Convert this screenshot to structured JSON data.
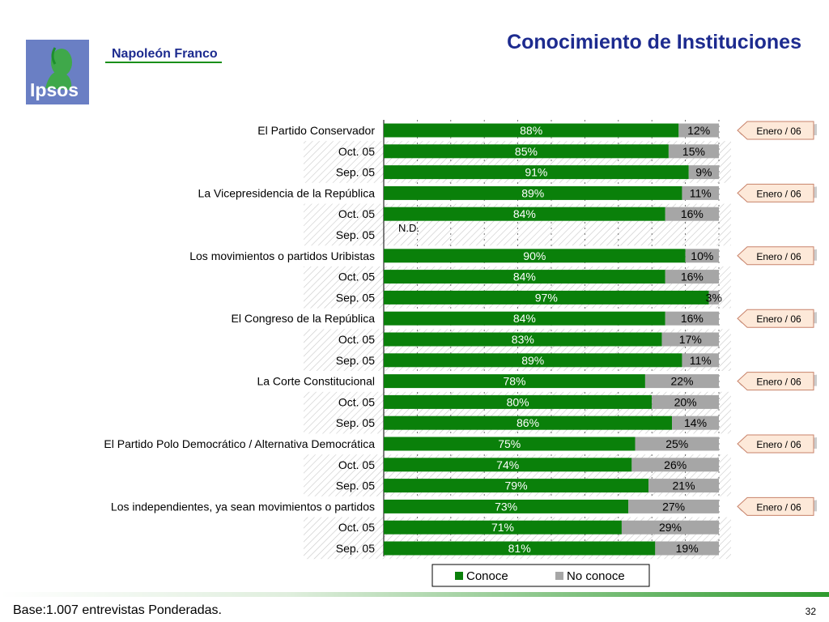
{
  "header": {
    "title": "Conocimiento de Instituciones",
    "logo_text": "Ipsos",
    "brand": "Napoleón Franco"
  },
  "footer": {
    "note": "Base:1.007 entrevistas Ponderadas.",
    "page_number": "32"
  },
  "colors": {
    "conoce": "#0a800a",
    "no_conoce": "#a6a6a6",
    "title": "#1d2b8f",
    "callout_fill": "#fde9d9",
    "callout_border": "#c8826a"
  },
  "chart_data": {
    "type": "bar",
    "orientation": "horizontal",
    "stacked": true,
    "xlim": [
      0,
      100
    ],
    "unit": "%",
    "legend": {
      "position": "bottom",
      "entries": [
        "Conoce",
        "No conoce"
      ]
    },
    "series": [
      {
        "name": "Conoce",
        "color": "#0a800a"
      },
      {
        "name": "No conoce",
        "color": "#a6a6a6"
      }
    ],
    "categories": [
      "El Partido Conservador",
      "Oct. 05",
      "Sep. 05",
      "La Vicepresidencia de la República",
      "Oct. 05",
      "Sep. 05",
      "Los movimientos o partidos Uribistas",
      "Oct. 05",
      "Sep. 05",
      "El Congreso de la República",
      "Oct. 05",
      "Sep. 05",
      "La Corte Constitucional",
      "Oct. 05",
      "Sep. 05",
      "El Partido Polo Democrático / Alternativa Democrática",
      "Oct. 05",
      "Sep. 05",
      "Los independientes, ya sean movimientos o partidos",
      "Oct. 05",
      "Sep. 05"
    ],
    "rows": [
      {
        "label": "El Partido Conservador",
        "conoce": 88,
        "no_conoce": 12,
        "conoce_label": "88%",
        "no_conoce_label": "12%",
        "history": false
      },
      {
        "label": "Oct. 05",
        "conoce": 85,
        "no_conoce": 15,
        "conoce_label": "85%",
        "no_conoce_label": "15%",
        "history": true
      },
      {
        "label": "Sep. 05",
        "conoce": 91,
        "no_conoce": 9,
        "conoce_label": "91%",
        "no_conoce_label": "9%",
        "history": true
      },
      {
        "label": "La Vicepresidencia de la República",
        "conoce": 89,
        "no_conoce": 11,
        "conoce_label": "89%",
        "no_conoce_label": "11%",
        "history": false
      },
      {
        "label": "Oct. 05",
        "conoce": 84,
        "no_conoce": 16,
        "conoce_label": "84%",
        "no_conoce_label": "16%",
        "history": true
      },
      {
        "label": "Sep. 05",
        "conoce": null,
        "no_conoce": null,
        "na_label": "N.D.",
        "history": true
      },
      {
        "label": "Los movimientos o partidos Uribistas",
        "conoce": 90,
        "no_conoce": 10,
        "conoce_label": "90%",
        "no_conoce_label": "10%",
        "history": false
      },
      {
        "label": "Oct. 05",
        "conoce": 84,
        "no_conoce": 16,
        "conoce_label": "84%",
        "no_conoce_label": "16%",
        "history": true
      },
      {
        "label": "Sep. 05",
        "conoce": 97,
        "no_conoce": 3,
        "conoce_label": "97%",
        "no_conoce_label": "3%",
        "history": true
      },
      {
        "label": "El Congreso de la República",
        "conoce": 84,
        "no_conoce": 16,
        "conoce_label": "84%",
        "no_conoce_label": "16%",
        "history": false
      },
      {
        "label": "Oct. 05",
        "conoce": 83,
        "no_conoce": 17,
        "conoce_label": "83%",
        "no_conoce_label": "17%",
        "history": true
      },
      {
        "label": "Sep. 05",
        "conoce": 89,
        "no_conoce": 11,
        "conoce_label": "89%",
        "no_conoce_label": "11%",
        "history": true
      },
      {
        "label": "La Corte Constitucional",
        "conoce": 78,
        "no_conoce": 22,
        "conoce_label": "78%",
        "no_conoce_label": "22%",
        "history": false
      },
      {
        "label": "Oct. 05",
        "conoce": 80,
        "no_conoce": 20,
        "conoce_label": "80%",
        "no_conoce_label": "20%",
        "history": true
      },
      {
        "label": "Sep. 05",
        "conoce": 86,
        "no_conoce": 14,
        "conoce_label": "86%",
        "no_conoce_label": "14%",
        "history": true
      },
      {
        "label": "El Partido Polo Democrático / Alternativa Democrática",
        "conoce": 75,
        "no_conoce": 25,
        "conoce_label": "75%",
        "no_conoce_label": "25%",
        "history": false
      },
      {
        "label": "Oct. 05",
        "conoce": 74,
        "no_conoce": 26,
        "conoce_label": "74%",
        "no_conoce_label": "26%",
        "history": true
      },
      {
        "label": "Sep. 05",
        "conoce": 79,
        "no_conoce": 21,
        "conoce_label": "79%",
        "no_conoce_label": "21%",
        "history": true
      },
      {
        "label": "Los independientes, ya sean movimientos o partidos",
        "conoce": 73,
        "no_conoce": 27,
        "conoce_label": "73%",
        "no_conoce_label": "27%",
        "history": false
      },
      {
        "label": "Oct. 05",
        "conoce": 71,
        "no_conoce": 29,
        "conoce_label": "71%",
        "no_conoce_label": "29%",
        "history": true
      },
      {
        "label": "Sep. 05",
        "conoce": 81,
        "no_conoce": 19,
        "conoce_label": "81%",
        "no_conoce_label": "19%",
        "history": true
      }
    ],
    "callouts": [
      "Enero / 06",
      "Enero / 06",
      "Enero / 06",
      "Enero / 06",
      "Enero / 06",
      "Enero / 06",
      "Enero / 06"
    ]
  }
}
